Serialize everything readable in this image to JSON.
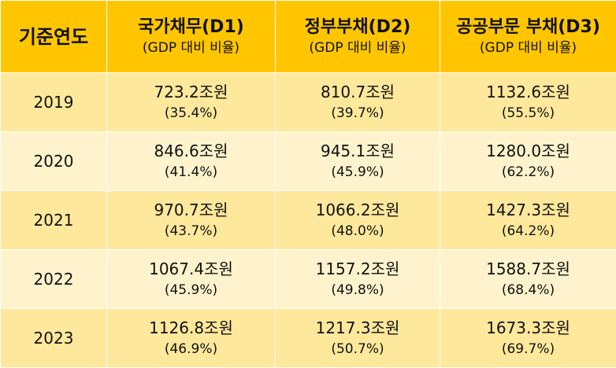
{
  "table": {
    "headers": [
      {
        "main": "기준연도",
        "sub": ""
      },
      {
        "main": "국가채무(D1)",
        "sub": "(GDP 대비 비율)"
      },
      {
        "main": "정부부채(D2)",
        "sub": "(GDP 대비 비율)"
      },
      {
        "main": "공공부문 부채(D3)",
        "sub": "(GDP 대비 비율)"
      }
    ],
    "rows": [
      {
        "year": "2019",
        "cells": [
          {
            "value": "723.2조원",
            "pct": "(35.4%)"
          },
          {
            "value": "810.7조원",
            "pct": "(39.7%)"
          },
          {
            "value": "1132.6조원",
            "pct": "(55.5%)"
          }
        ]
      },
      {
        "year": "2020",
        "cells": [
          {
            "value": "846.6조원",
            "pct": "(41.4%)"
          },
          {
            "value": "945.1조원",
            "pct": "(45.9%)"
          },
          {
            "value": "1280.0조원",
            "pct": "(62.2%)"
          }
        ]
      },
      {
        "year": "2021",
        "cells": [
          {
            "value": "970.7조원",
            "pct": "(43.7%)"
          },
          {
            "value": "1066.2조원",
            "pct": "(48.0%)"
          },
          {
            "value": "1427.3조원",
            "pct": "(64.2%)"
          }
        ]
      },
      {
        "year": "2022",
        "cells": [
          {
            "value": "1067.4조원",
            "pct": "(45.9%)"
          },
          {
            "value": "1157.2조원",
            "pct": "(49.8%)"
          },
          {
            "value": "1588.7조원",
            "pct": "(68.4%)"
          }
        ]
      },
      {
        "year": "2023",
        "cells": [
          {
            "value": "1126.8조원",
            "pct": "(46.9%)"
          },
          {
            "value": "1217.3조원",
            "pct": "(50.7%)"
          },
          {
            "value": "1673.3조원",
            "pct": "(69.7%)"
          }
        ]
      }
    ]
  },
  "colors": {
    "header_bg": "#ffc600",
    "row_dark": "#fee89c",
    "row_light": "#fef3cc"
  }
}
